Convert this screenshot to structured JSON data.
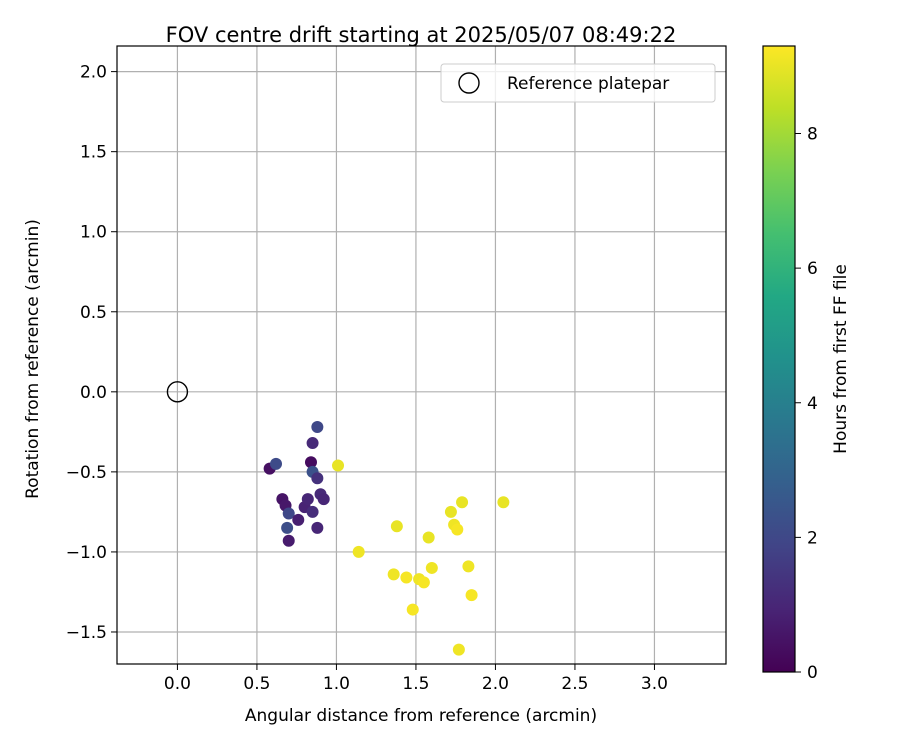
{
  "chart_data": {
    "type": "scatter",
    "title": "FOV centre drift starting at 2025/05/07 08:49:22",
    "xlabel": "Angular distance from reference (arcmin)",
    "ylabel": "Rotation from reference (arcmin)",
    "xlim": [
      -0.38,
      3.45
    ],
    "ylim": [
      -1.7,
      2.16
    ],
    "xticks": [
      0.0,
      0.5,
      1.0,
      1.5,
      2.0,
      2.5,
      3.0
    ],
    "xtick_labels": [
      "0.0",
      "0.5",
      "1.0",
      "1.5",
      "2.0",
      "2.5",
      "3.0"
    ],
    "yticks": [
      -1.5,
      -1.0,
      -0.5,
      0.0,
      0.5,
      1.0,
      1.5,
      2.0
    ],
    "ytick_labels": [
      "−1.5",
      "−1.0",
      "−0.5",
      "0.0",
      "0.5",
      "1.0",
      "1.5",
      "2.0"
    ],
    "grid": true,
    "legend": {
      "placement": "upper right",
      "entries": [
        "Reference platepar"
      ]
    },
    "reference_point": {
      "name": "Reference platepar",
      "x": 0.0,
      "y": 0.0
    },
    "colorbar": {
      "label": "Hours from first FF file",
      "colormap": "viridis",
      "range": [
        0,
        9.3
      ],
      "ticks": [
        0,
        2,
        4,
        6,
        8
      ],
      "tick_labels": [
        "0",
        "2",
        "4",
        "6",
        "8"
      ]
    },
    "points": [
      {
        "x": 0.58,
        "y": -0.48,
        "c": 0.4
      },
      {
        "x": 0.62,
        "y": -0.45,
        "c": 2.1
      },
      {
        "x": 0.66,
        "y": -0.67,
        "c": 0.5
      },
      {
        "x": 0.68,
        "y": -0.71,
        "c": 0.6
      },
      {
        "x": 0.7,
        "y": -0.76,
        "c": 2.0
      },
      {
        "x": 0.69,
        "y": -0.85,
        "c": 2.2
      },
      {
        "x": 0.7,
        "y": -0.93,
        "c": 0.7
      },
      {
        "x": 0.76,
        "y": -0.8,
        "c": 0.8
      },
      {
        "x": 0.8,
        "y": -0.72,
        "c": 0.9
      },
      {
        "x": 0.82,
        "y": -0.67,
        "c": 1.0
      },
      {
        "x": 0.84,
        "y": -0.44,
        "c": 0.3
      },
      {
        "x": 0.85,
        "y": -0.32,
        "c": 1.1
      },
      {
        "x": 0.85,
        "y": -0.5,
        "c": 2.3
      },
      {
        "x": 0.85,
        "y": -0.75,
        "c": 1.2
      },
      {
        "x": 0.88,
        "y": -0.54,
        "c": 1.3
      },
      {
        "x": 0.88,
        "y": -0.85,
        "c": 1.0
      },
      {
        "x": 0.88,
        "y": -0.22,
        "c": 2.0
      },
      {
        "x": 0.9,
        "y": -0.64,
        "c": 1.1
      },
      {
        "x": 0.92,
        "y": -0.67,
        "c": 1.0
      },
      {
        "x": 1.01,
        "y": -0.46,
        "c": 9.0
      },
      {
        "x": 1.14,
        "y": -1.0,
        "c": 9.1
      },
      {
        "x": 1.36,
        "y": -1.14,
        "c": 9.1
      },
      {
        "x": 1.38,
        "y": -0.84,
        "c": 9.0
      },
      {
        "x": 1.44,
        "y": -1.16,
        "c": 9.2
      },
      {
        "x": 1.48,
        "y": -1.36,
        "c": 9.2
      },
      {
        "x": 1.52,
        "y": -1.17,
        "c": 9.1
      },
      {
        "x": 1.55,
        "y": -1.19,
        "c": 9.2
      },
      {
        "x": 1.58,
        "y": -0.91,
        "c": 9.0
      },
      {
        "x": 1.6,
        "y": -1.1,
        "c": 9.1
      },
      {
        "x": 1.72,
        "y": -0.75,
        "c": 9.0
      },
      {
        "x": 1.74,
        "y": -0.83,
        "c": 9.1
      },
      {
        "x": 1.76,
        "y": -0.86,
        "c": 9.2
      },
      {
        "x": 1.77,
        "y": -1.61,
        "c": 9.1
      },
      {
        "x": 1.79,
        "y": -0.69,
        "c": 9.0
      },
      {
        "x": 1.83,
        "y": -1.09,
        "c": 9.1
      },
      {
        "x": 1.85,
        "y": -1.27,
        "c": 9.2
      },
      {
        "x": 2.05,
        "y": -0.69,
        "c": 9.0
      }
    ]
  }
}
